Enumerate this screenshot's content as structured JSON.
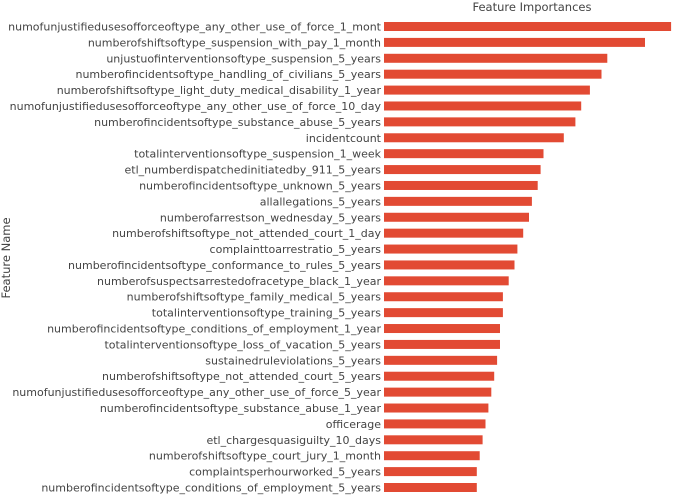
{
  "chart_data": {
    "type": "bar",
    "orientation": "horizontal",
    "title": "Feature Importances",
    "xlabel": "",
    "ylabel": "Feature Name",
    "xlim": [
      0,
      1
    ],
    "grid": false,
    "bar_color": "#E24A33",
    "categories": [
      "numofunjustifiedusesofforceoftype_any_other_use_of_force_1_mont",
      "numberofshiftsoftype_suspension_with_pay_1_month",
      "unjustuofinterventionsoftype_suspension_5_years",
      "numberofincidentsoftype_handling_of_civilians_5_years",
      "numberofshiftsoftype_light_duty_medical_disability_1_year",
      "numofunjustifiedusesofforceoftype_any_other_use_of_force_10_day",
      "numberofincidentsoftype_substance_abuse_5_years",
      "incidentcount",
      "totalinterventionsoftype_suspension_1_week",
      "etl_numberdispatchedinitiatedby_911_5_years",
      "numberofincidentsoftype_unknown_5_years",
      "allallegations_5_years",
      "numberofarrestson_wednesday_5_years",
      "numberofshiftsoftype_not_attended_court_1_day",
      "complainttoarrestratio_5_years",
      "numberofincidentsoftype_conformance_to_rules_5_years",
      "numberofsuspectsarrestedofracetype_black_1_year",
      "numberofshiftsoftype_family_medical_5_years",
      "totalinterventionsoftype_training_5_years",
      "numberofincidentsoftype_conditions_of_employment_1_year",
      "totalinterventionsoftype_loss_of_vacation_5_years",
      "sustainedruleviolations_5_years",
      "numberofshiftsoftype_not_attended_court_5_years",
      "numofunjustifiedusesofforceoftype_any_other_use_of_force_5_year",
      "numberofincidentsoftype_substance_abuse_1_year",
      "officerage",
      "etl_chargesquasiguilty_10_days",
      "numberofshiftsoftype_court_jury_1_month",
      "complaintsperhourworked_5_years",
      "numberofincidentsoftype_conditions_of_employment_5_years"
    ],
    "values": [
      0.99,
      0.9,
      0.77,
      0.75,
      0.71,
      0.68,
      0.66,
      0.62,
      0.55,
      0.54,
      0.53,
      0.51,
      0.5,
      0.48,
      0.46,
      0.45,
      0.43,
      0.41,
      0.41,
      0.4,
      0.4,
      0.39,
      0.38,
      0.37,
      0.36,
      0.35,
      0.34,
      0.33,
      0.32,
      0.32
    ]
  }
}
